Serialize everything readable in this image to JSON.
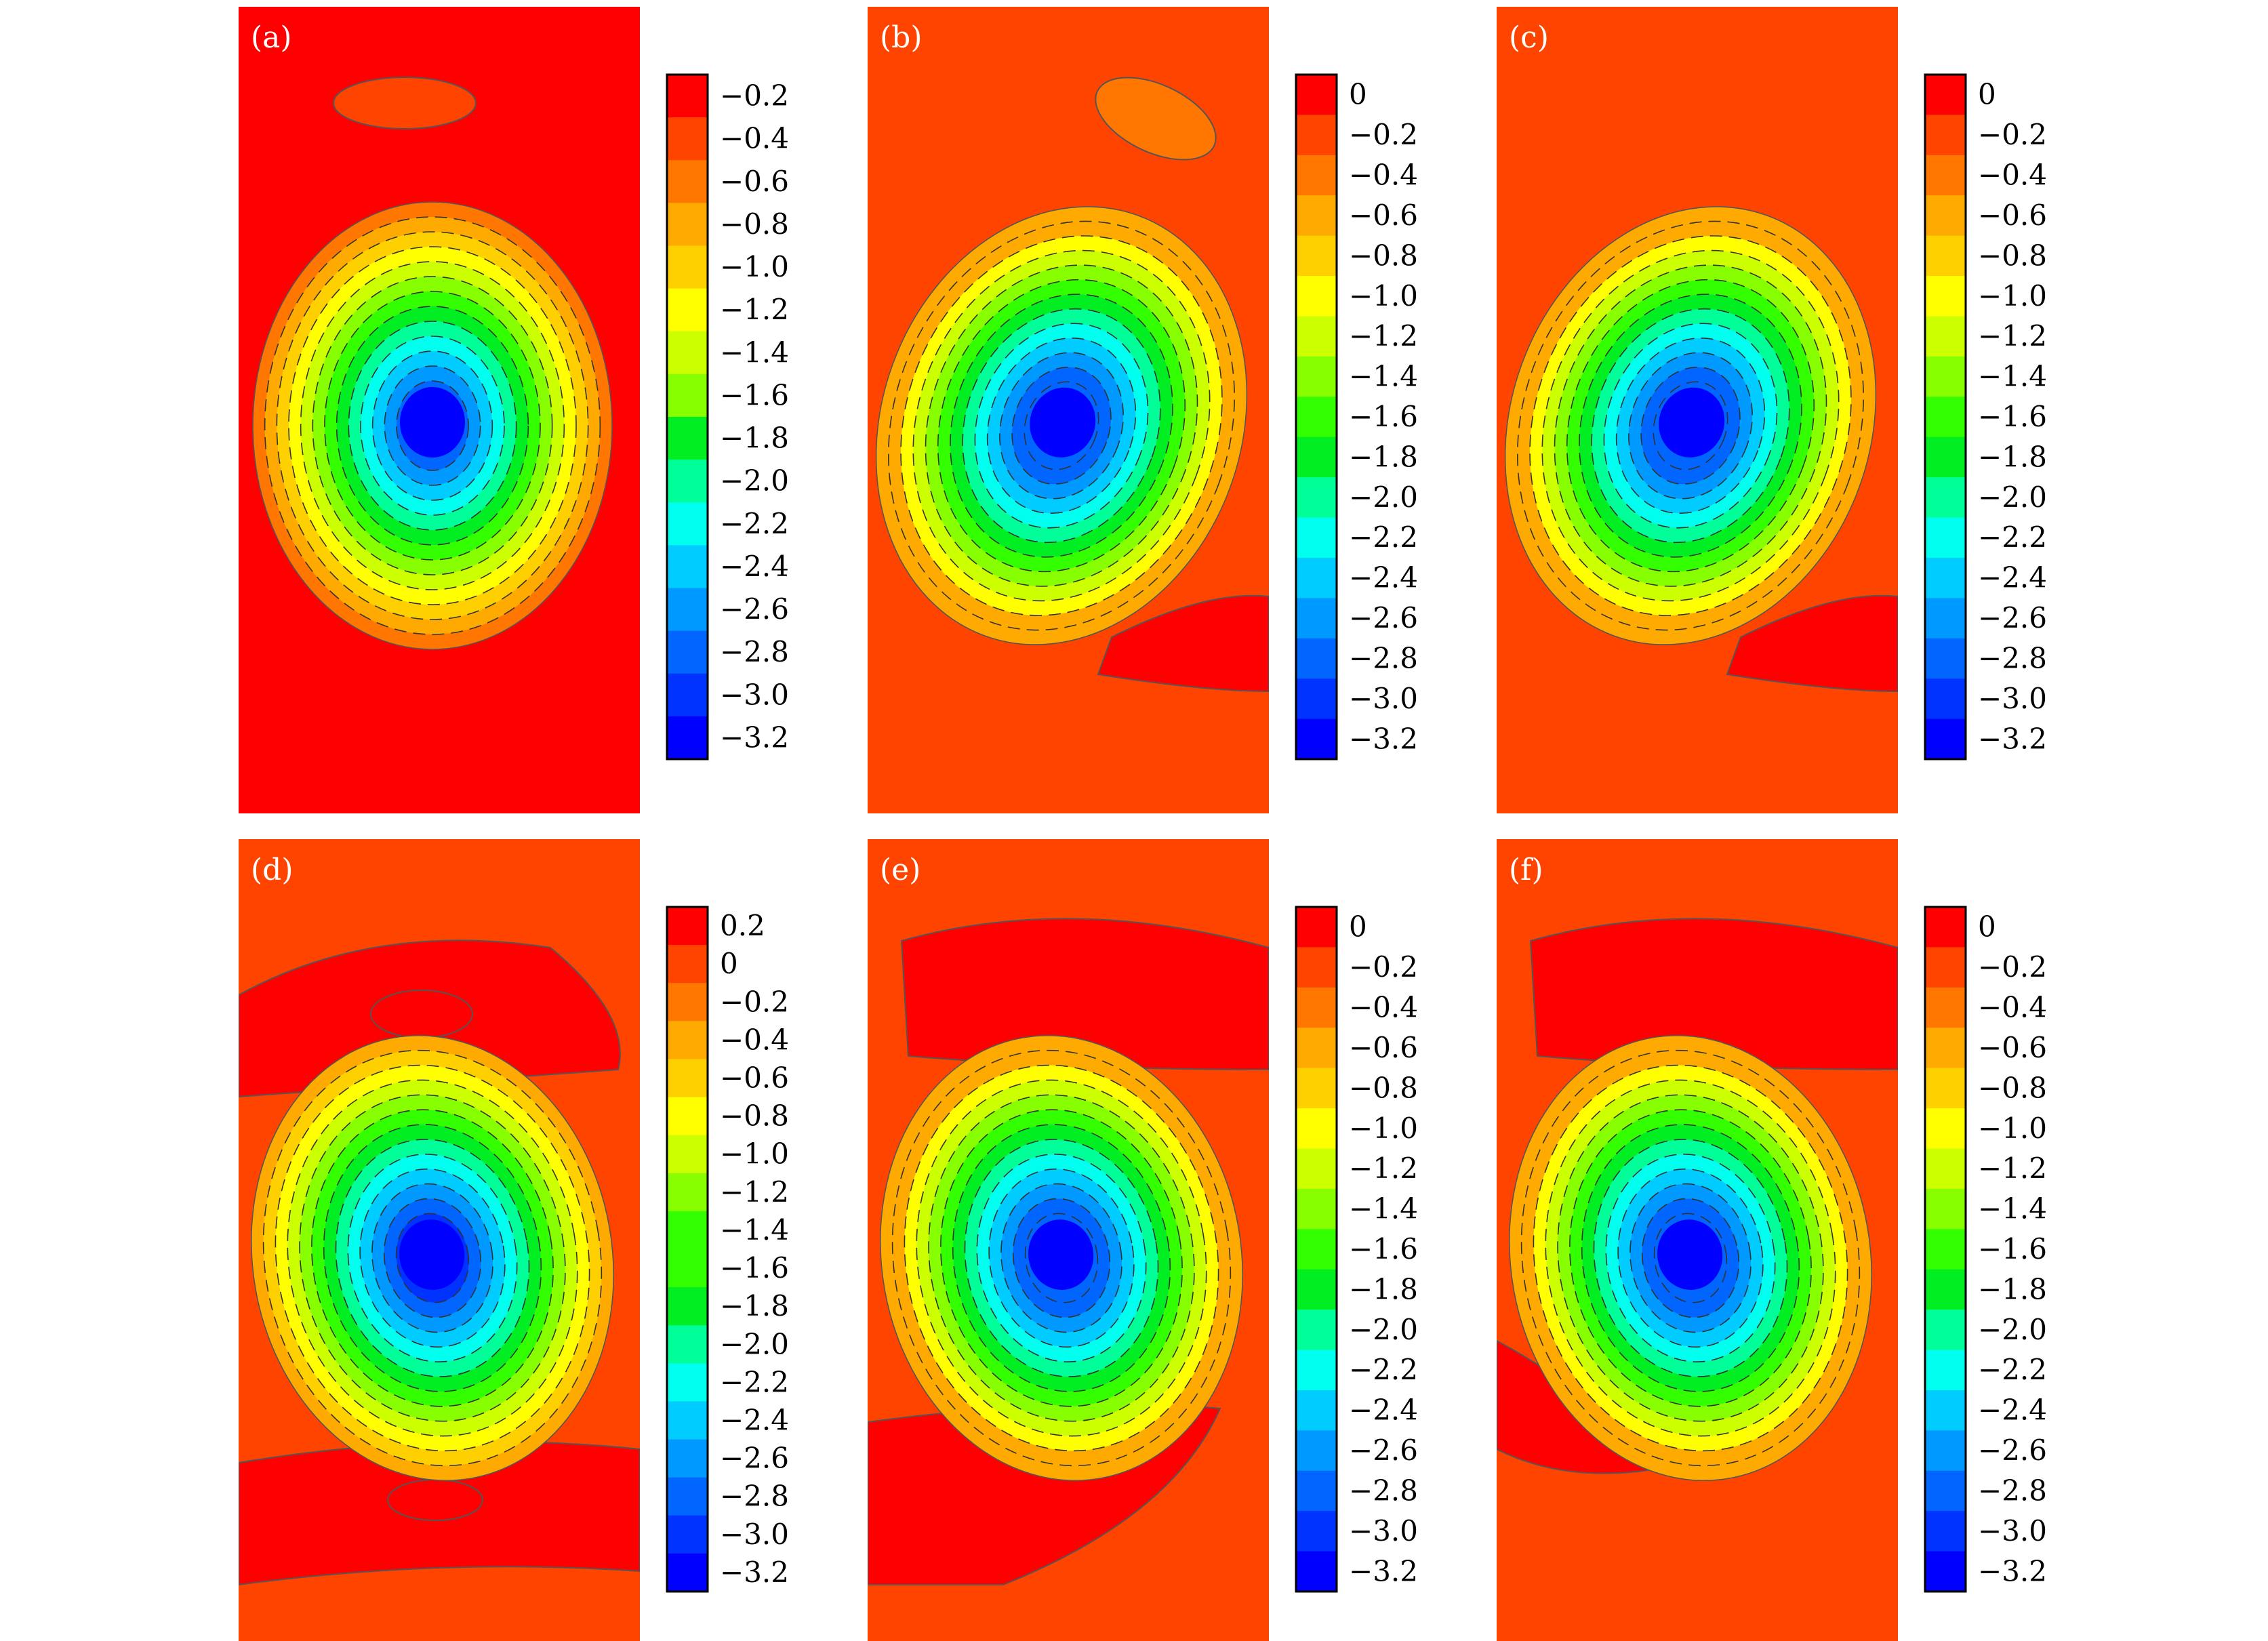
{
  "figure_title": "",
  "chart_data": [
    {
      "type": "contour",
      "label": "(a)",
      "background_level": "-0.2",
      "upper_blob_level": "-0.4",
      "lower_blob_level": "",
      "colorbar": {
        "ticks": [
          "−0.2",
          "−0.4",
          "−0.6",
          "−0.8",
          "−1.0",
          "−1.2",
          "−1.4",
          "−1.6",
          "−1.8",
          "−2.0",
          "−2.2",
          "−2.4",
          "−2.6",
          "−2.8",
          "−3.0",
          "−3.2"
        ],
        "colors": [
          "#ff0000",
          "#ff4400",
          "#ff7700",
          "#ffaa00",
          "#ffd000",
          "#ffff00",
          "#ccff00",
          "#88ff00",
          "#33ff00",
          "#00ee22",
          "#00ff99",
          "#00ffee",
          "#00ccff",
          "#0099ff",
          "#0066ff",
          "#0033ff",
          "#0000ff"
        ],
        "range": [
          -3.3,
          -0.1
        ]
      }
    },
    {
      "type": "contour",
      "label": "(b)",
      "background_level": "-0.1",
      "upper_blob_level": "-0.4",
      "lower_blob_level": "0",
      "colorbar": {
        "ticks": [
          "0",
          "−0.2",
          "−0.4",
          "−0.6",
          "−0.8",
          "−1.0",
          "−1.2",
          "−1.4",
          "−1.6",
          "−1.8",
          "−2.0",
          "−2.2",
          "−2.4",
          "−2.6",
          "−2.8",
          "−3.0",
          "−3.2"
        ],
        "colors": [
          "#ff0000",
          "#ff4400",
          "#ff7700",
          "#ffaa00",
          "#ffd000",
          "#ffff00",
          "#ccff00",
          "#88ff00",
          "#33ff00",
          "#00ee22",
          "#00ff99",
          "#00ffee",
          "#00ccff",
          "#0099ff",
          "#0066ff",
          "#0033ff",
          "#0000ff"
        ],
        "range": [
          -3.3,
          0.1
        ]
      }
    },
    {
      "type": "contour",
      "label": "(c)",
      "background_level": "-0.1",
      "upper_blob_level": "",
      "lower_blob_level": "0",
      "colorbar": {
        "ticks": [
          "0",
          "−0.2",
          "−0.4",
          "−0.6",
          "−0.8",
          "−1.0",
          "−1.2",
          "−1.4",
          "−1.6",
          "−1.8",
          "−2.0",
          "−2.2",
          "−2.4",
          "−2.6",
          "−2.8",
          "−3.0",
          "−3.2"
        ],
        "colors": [
          "#ff0000",
          "#ff4400",
          "#ff7700",
          "#ffaa00",
          "#ffd000",
          "#ffff00",
          "#ccff00",
          "#88ff00",
          "#33ff00",
          "#00ee22",
          "#00ff99",
          "#00ffee",
          "#00ccff",
          "#0099ff",
          "#0066ff",
          "#0033ff",
          "#0000ff"
        ],
        "range": [
          -3.3,
          0.1
        ]
      }
    },
    {
      "type": "contour",
      "label": "(d)",
      "background_level": "-0.1",
      "upper_blob_level": "0.1",
      "lower_blob_level": "0.1",
      "colorbar": {
        "ticks": [
          "0.2",
          "0",
          "−0.2",
          "−0.4",
          "−0.6",
          "−0.8",
          "−1.0",
          "−1.2",
          "−1.4",
          "−1.6",
          "−1.8",
          "−2.0",
          "−2.2",
          "−2.4",
          "−2.6",
          "−2.8",
          "−3.0",
          "−3.2"
        ],
        "colors": [
          "#ff0000",
          "#ff4400",
          "#ff7700",
          "#ffaa00",
          "#ffd000",
          "#ffff00",
          "#ccff00",
          "#88ff00",
          "#33ff00",
          "#00ee22",
          "#00ff99",
          "#00ffee",
          "#00ccff",
          "#0099ff",
          "#0066ff",
          "#0033ff",
          "#0000ff"
        ],
        "range": [
          -3.3,
          0.3
        ]
      }
    },
    {
      "type": "contour",
      "label": "(e)",
      "background_level": "-0.1",
      "upper_blob_level": "0",
      "lower_blob_level": "0",
      "colorbar": {
        "ticks": [
          "0",
          "−0.2",
          "−0.4",
          "−0.6",
          "−0.8",
          "−1.0",
          "−1.2",
          "−1.4",
          "−1.6",
          "−1.8",
          "−2.0",
          "−2.2",
          "−2.4",
          "−2.6",
          "−2.8",
          "−3.0",
          "−3.2"
        ],
        "colors": [
          "#ff0000",
          "#ff4400",
          "#ff7700",
          "#ffaa00",
          "#ffd000",
          "#ffff00",
          "#ccff00",
          "#88ff00",
          "#33ff00",
          "#00ee22",
          "#00ff99",
          "#00ffee",
          "#00ccff",
          "#0099ff",
          "#0066ff",
          "#0033ff",
          "#0000ff"
        ],
        "range": [
          -3.3,
          0.1
        ]
      }
    },
    {
      "type": "contour",
      "label": "(f)",
      "background_level": "-0.1",
      "upper_blob_level": "0",
      "lower_blob_level": "0",
      "colorbar": {
        "ticks": [
          "0",
          "−0.2",
          "−0.4",
          "−0.6",
          "−0.8",
          "−1.0",
          "−1.2",
          "−1.4",
          "−1.6",
          "−1.8",
          "−2.0",
          "−2.2",
          "−2.4",
          "−2.6",
          "−2.8",
          "−3.0",
          "−3.2"
        ],
        "colors": [
          "#ff0000",
          "#ff4400",
          "#ff7700",
          "#ffaa00",
          "#ffd000",
          "#ffff00",
          "#ccff00",
          "#88ff00",
          "#33ff00",
          "#00ee22",
          "#00ff99",
          "#00ffee",
          "#00ccff",
          "#0099ff",
          "#0066ff",
          "#0033ff",
          "#0000ff"
        ],
        "range": [
          -3.3,
          0.1
        ]
      }
    }
  ]
}
